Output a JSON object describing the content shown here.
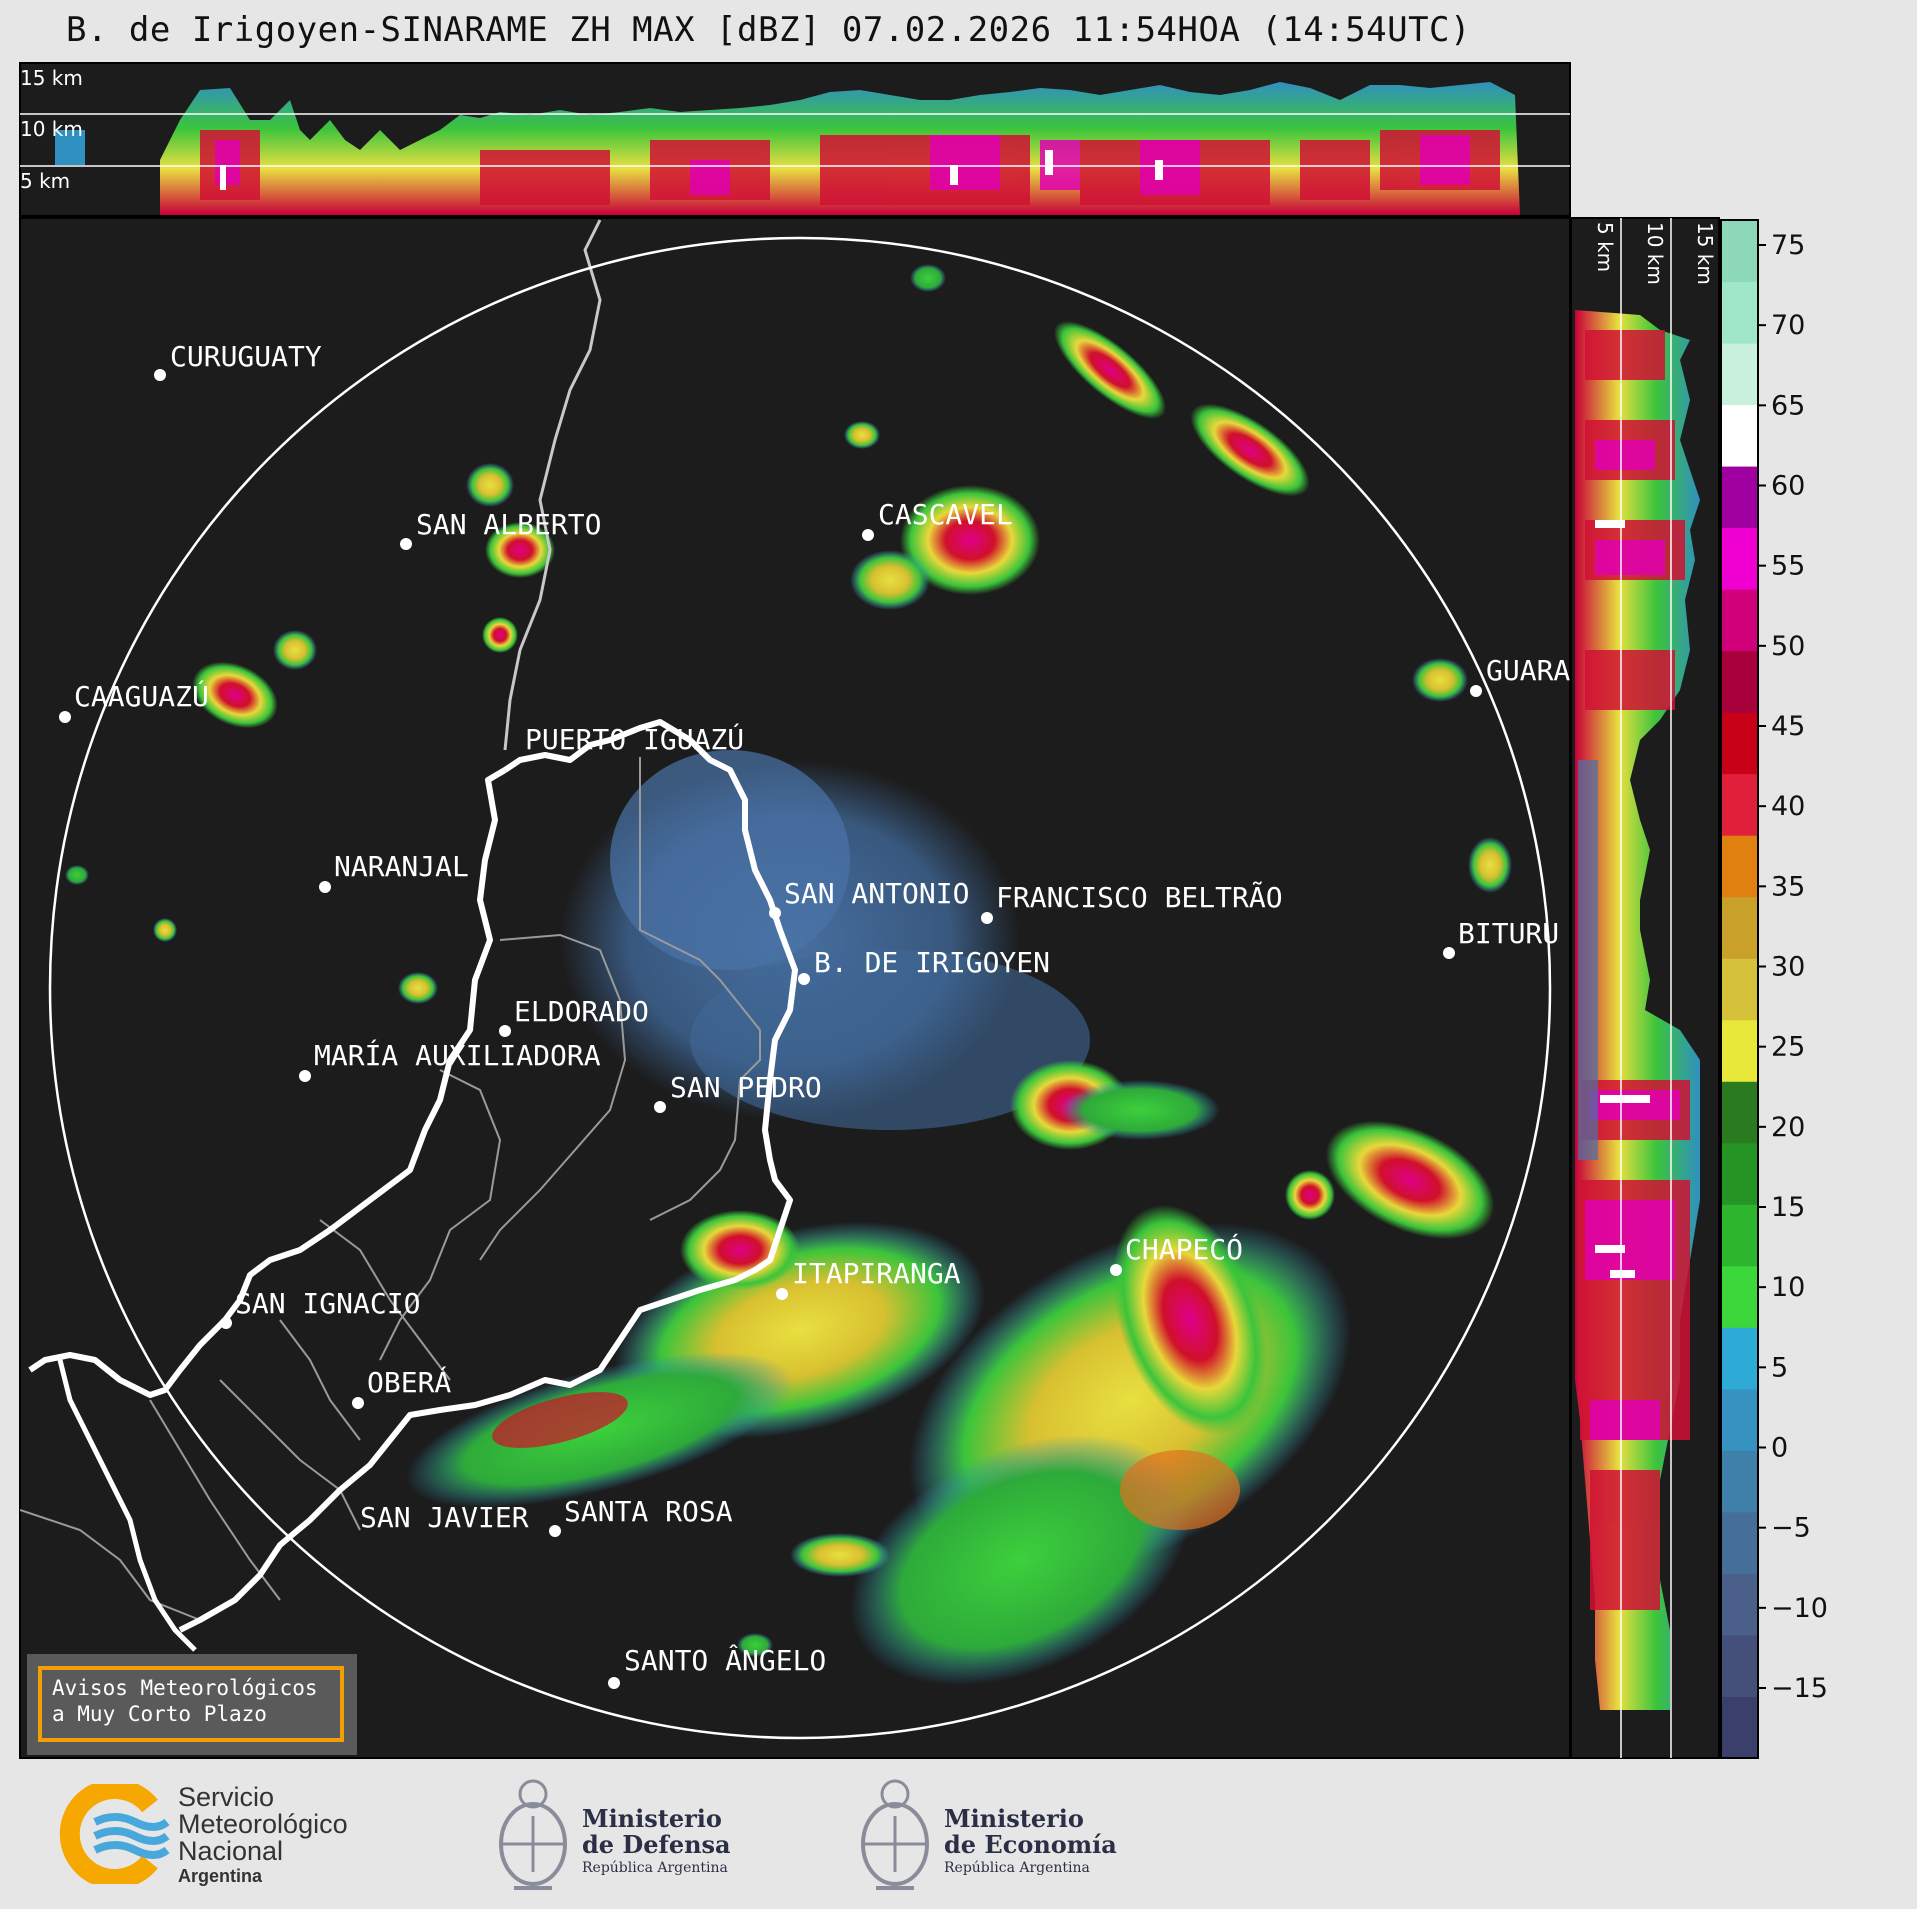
{
  "title": "B. de Irigoyen-SINARAME ZH MAX [dBZ] 07.02.2026 11:54HOA (14:54UTC)",
  "height_labels_top": [
    "15 km",
    "10 km",
    "5 km"
  ],
  "height_labels_side": [
    "5 km",
    "10 km",
    "15 km"
  ],
  "colorbar": {
    "unit": "dBZ",
    "ticks": [
      "75",
      "70",
      "65",
      "60",
      "55",
      "50",
      "45",
      "40",
      "35",
      "30",
      "25",
      "20",
      "15",
      "10",
      "5",
      "0",
      "−5",
      "−10",
      "−15"
    ]
  },
  "cities": [
    {
      "name": "CURUGUATY"
    },
    {
      "name": "SAN ALBERTO"
    },
    {
      "name": "CAAGUAZÚ"
    },
    {
      "name": "CASCAVEL"
    },
    {
      "name": "GUARA"
    },
    {
      "name": "PUERTO IGUAZÚ"
    },
    {
      "name": "NARANJAL"
    },
    {
      "name": "SAN ANTONIO"
    },
    {
      "name": "FRANCISCO BELTRÃO"
    },
    {
      "name": "BITURU"
    },
    {
      "name": "B. DE IRIGOYEN"
    },
    {
      "name": "ELDORADO"
    },
    {
      "name": "MARÍA AUXILIADORA"
    },
    {
      "name": "SAN PEDRO"
    },
    {
      "name": "CHAPECÓ"
    },
    {
      "name": "ITAPIRANGA"
    },
    {
      "name": "SAN IGNACIO"
    },
    {
      "name": "OBERÁ"
    },
    {
      "name": "SAN JAVIER"
    },
    {
      "name": "SANTA ROSA"
    },
    {
      "name": "SANTO ÂNGELO"
    }
  ],
  "warning": {
    "line1": "Avisos Meteorológicos",
    "line2": "a Muy Corto Plazo"
  },
  "footer": {
    "smn": {
      "line1": "Servicio",
      "line2": "Meteorológico",
      "line3": "Nacional",
      "line4": "Argentina"
    },
    "defensa": {
      "line1": "Ministerio",
      "line2": "de Defensa",
      "line3": "República Argentina"
    },
    "economia": {
      "line1": "Ministerio",
      "line2": "de Economía",
      "line3": "República Argentina"
    }
  },
  "colors": {
    "background": "#1c1c1c",
    "page": "#e6e6e6",
    "colorbar": [
      "#3b3f6b",
      "#44507a",
      "#4a5f8a",
      "#456f99",
      "#3e80aa",
      "#3692c0",
      "#2eaad6",
      "#3bd73b",
      "#2eb52e",
      "#249424",
      "#2a7a1f",
      "#e8e83a",
      "#d6c23a",
      "#c9a02a",
      "#e08010",
      "#e0203a",
      "#c80018",
      "#a8003a",
      "#d0007a",
      "#f000d0",
      "#a000a0",
      "#ffffff",
      "#c8f0dc",
      "#a0e6c8",
      "#8cd8b8"
    ]
  }
}
